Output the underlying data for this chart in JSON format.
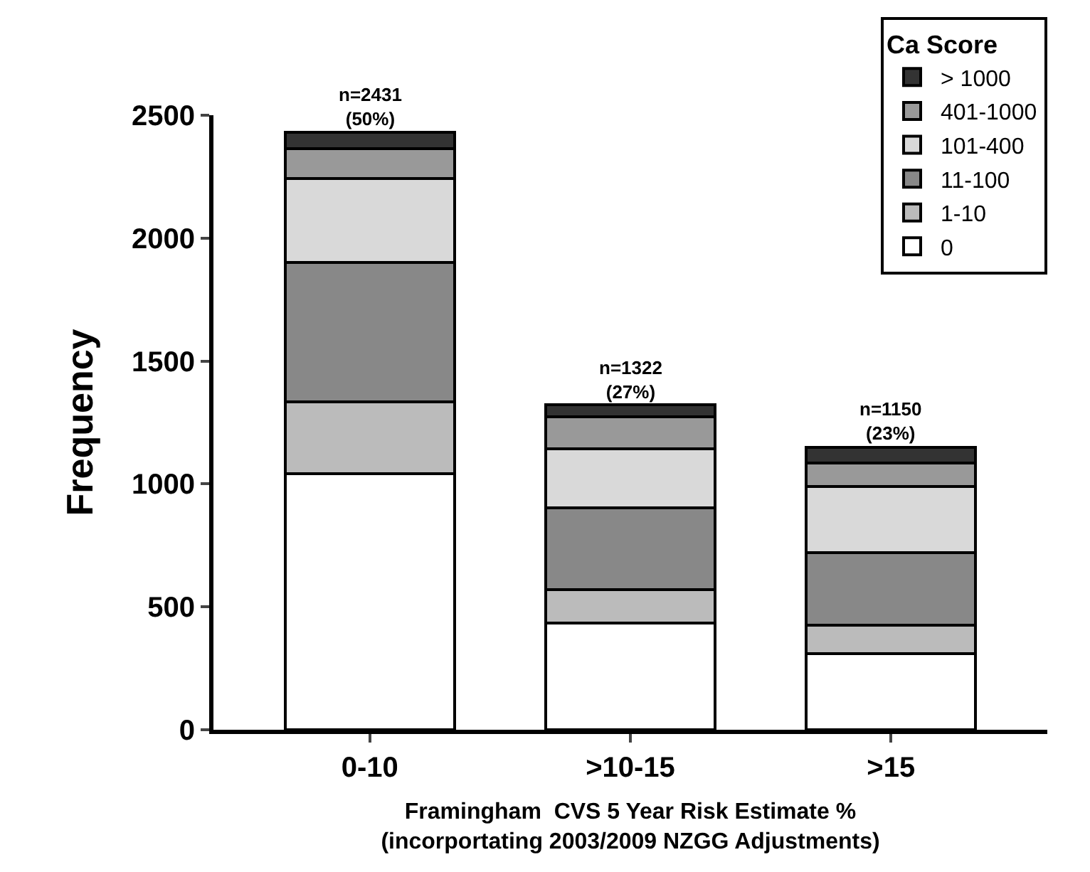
{
  "chart_data": {
    "type": "bar",
    "stacked": true,
    "xlabel": "Framingham  CVS 5 Year Risk Estimate %\n(incorportating 2003/2009 NZGG Adjustments)",
    "ylabel": "Frequency",
    "legend_title": "Ca Score",
    "categories": [
      "0-10",
      ">10-15",
      ">15"
    ],
    "series": [
      {
        "name": "0",
        "color": "#ffffff",
        "values": [
          1043,
          434,
          309
        ]
      },
      {
        "name": "1-10",
        "color": "#bbbbbb",
        "values": [
          290,
          137,
          116
        ]
      },
      {
        "name": "11-100",
        "color": "#888888",
        "values": [
          568,
          332,
          296
        ]
      },
      {
        "name": "101-400",
        "color": "#d9d9d9",
        "values": [
          341,
          239,
          270
        ]
      },
      {
        "name": "401-1000",
        "color": "#999999",
        "values": [
          123,
          132,
          95
        ]
      },
      {
        "name": "> 1000",
        "color": "#333333",
        "values": [
          66,
          48,
          64
        ]
      }
    ],
    "totals": [
      "n=2431\n(50%)",
      "n=1322\n(27%)",
      "n=1150\n(23%)"
    ],
    "ylim": [
      0,
      2500
    ],
    "yticks": [
      0,
      500,
      1000,
      1500,
      2000,
      2500
    ],
    "legend": "top right"
  }
}
